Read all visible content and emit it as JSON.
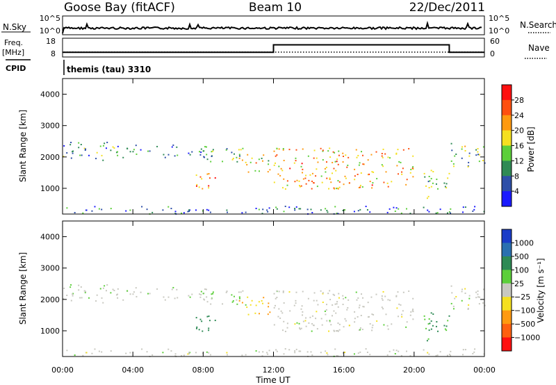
{
  "header": {
    "station": "Goose Bay (fitACF)",
    "beam": "Beam 10",
    "date": "22/Dec/2011"
  },
  "top_panel": {
    "left_label": "N.Sky",
    "right_label": "N.Search",
    "left_ticks": [
      "10^5",
      "10^0"
    ],
    "right_ticks": [
      "10^5",
      "10^0"
    ]
  },
  "freq_panel": {
    "left_label_1": "Freq.",
    "left_label_2": "[MHz]",
    "right_label": "Nave",
    "left_ticks": [
      "18",
      "8"
    ],
    "right_ticks": [
      "60",
      "0"
    ]
  },
  "cpid": {
    "label": "CPID",
    "text": "themis (tau) 3310"
  },
  "power_panel": {
    "ylabel": "Slant Range [km]",
    "yticks": [
      "4000",
      "3000",
      "2000",
      "1000"
    ],
    "colorbar_label": "Power [dB]",
    "colorbar_ticks": [
      "28",
      "24",
      "20",
      "16",
      "12",
      "8",
      "4"
    ],
    "colors": [
      "#1a1aff",
      "#2e4fa8",
      "#2f8a55",
      "#5ccf3a",
      "#f5e020",
      "#ff9a10",
      "#ff5010",
      "#ff1010"
    ]
  },
  "velocity_panel": {
    "ylabel": "Slant Range [km]",
    "yticks": [
      "4000",
      "3000",
      "2000",
      "1000"
    ],
    "colorbar_label": "Velocity [m s⁻¹]",
    "colorbar_ticks": [
      "1000",
      "500",
      "100",
      "25",
      "−25",
      "−100",
      "−500",
      "−1000"
    ],
    "colors": [
      "#1a3cc8",
      "#2a70b0",
      "#2e8a55",
      "#5ccf3a",
      "#c8c8c0",
      "#f5e020",
      "#ff9a10",
      "#ff6010",
      "#ff1010"
    ]
  },
  "x_axis": {
    "label": "Time UT",
    "ticks": [
      "00:00",
      "04:00",
      "08:00",
      "12:00",
      "16:00",
      "20:00",
      "00:00"
    ]
  },
  "chart_data": {
    "type": "heatmap",
    "title": "Goose Bay (fitACF)   Beam 10   22/Dec/2011",
    "xlabel": "Time UT",
    "ylabel": "Slant Range [km]",
    "xlim_hours": [
      0,
      24
    ],
    "ylim_km": [
      180,
      4500
    ],
    "panels": [
      {
        "name": "Power",
        "unit": "dB",
        "range": [
          0,
          30
        ]
      },
      {
        "name": "Velocity",
        "unit": "m s-1",
        "range": [
          -1000,
          1000
        ]
      }
    ],
    "frequency_mhz": {
      "segments": [
        {
          "from": 0,
          "to": 12,
          "value": 10.5
        },
        {
          "from": 12,
          "to": 22,
          "value": 14.5
        },
        {
          "from": 22,
          "to": 24,
          "value": 10.5
        }
      ]
    },
    "scatter_regions": [
      {
        "t0": 0.0,
        "t1": 3.0,
        "r0": 1900,
        "r1": 2500,
        "power": 10,
        "velocity": 15
      },
      {
        "t0": 3.0,
        "t1": 8.5,
        "r0": 2000,
        "r1": 2400,
        "power": 8,
        "velocity": 5
      },
      {
        "t0": 7.8,
        "t1": 10.5,
        "r0": 1800,
        "r1": 2300,
        "power": 12,
        "velocity": 20
      },
      {
        "t0": 7.5,
        "t1": 9.0,
        "r0": 1000,
        "r1": 1500,
        "power": 22,
        "velocity": 150
      },
      {
        "t0": 10.0,
        "t1": 11.8,
        "r0": 1500,
        "r1": 2100,
        "power": 18,
        "velocity": -100
      },
      {
        "t0": 12.0,
        "t1": 20.0,
        "r0": 1000,
        "r1": 2300,
        "power": 20,
        "velocity": 0
      },
      {
        "t0": 20.5,
        "t1": 22.0,
        "r0": 700,
        "r1": 1600,
        "power": 14,
        "velocity": 100
      },
      {
        "t0": 22.0,
        "t1": 24.0,
        "r0": 1700,
        "r1": 2500,
        "power": 12,
        "velocity": 0
      },
      {
        "t0": 0.0,
        "t1": 24.0,
        "r0": 200,
        "r1": 450,
        "power": 6,
        "velocity": 0
      }
    ]
  }
}
